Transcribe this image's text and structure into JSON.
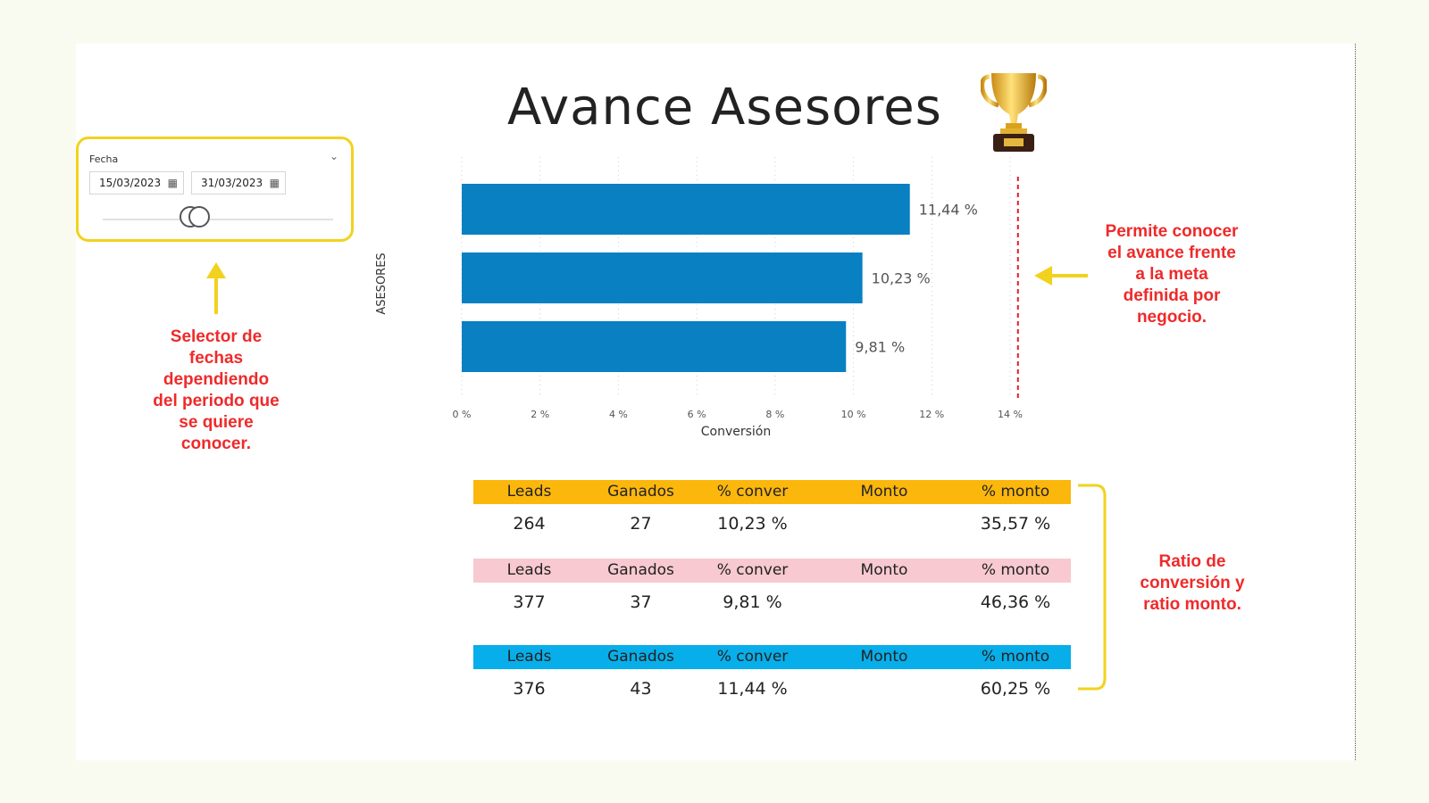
{
  "title": "Avance Asesores",
  "colors": {
    "bar": "#0880c1",
    "goal_line": "#e11d2a",
    "annotation": "#ef2a2a",
    "highlight": "#f2d21e",
    "table_yellow": "#fcb70d",
    "table_pink": "#f8c9d0",
    "table_blue": "#08aeea"
  },
  "slicer": {
    "label": "Fecha",
    "start_date": "15/03/2023",
    "end_date": "31/03/2023",
    "calendar_icon": "calendar-icon",
    "chevron_icon": "chevron-down-icon",
    "range_start": 0.38,
    "range_end": 0.42
  },
  "annotations": {
    "selector": [
      "Selector de",
      "fechas",
      "dependiendo",
      "del periodo que",
      "se quiere",
      "conocer."
    ],
    "goal": [
      "Permite conocer",
      "el avance frente",
      "a la meta",
      "definida por",
      "negocio."
    ],
    "ratio": [
      "Ratio de",
      "conversión y",
      "ratio monto."
    ]
  },
  "chart_data": {
    "type": "bar",
    "orientation": "horizontal",
    "xlabel": "Conversión",
    "ylabel": "ASESORES",
    "xlim": [
      0,
      14
    ],
    "xticks": [
      0,
      2,
      4,
      6,
      8,
      10,
      12,
      14
    ],
    "xtick_labels": [
      "0 %",
      "2 %",
      "4 %",
      "6 %",
      "8 %",
      "10 %",
      "12 %",
      "14 %"
    ],
    "values": [
      11.44,
      10.23,
      9.81
    ],
    "data_labels": [
      "11,44 %",
      "10,23 %",
      "9,81 %"
    ],
    "goal": 14.2,
    "grid": "vertical dotted"
  },
  "tables": [
    {
      "color": "#fcb70d",
      "headers": [
        "Leads",
        "Ganados",
        "% conver",
        "Monto",
        "% monto"
      ],
      "values": [
        "264",
        "27",
        "10,23 %",
        "",
        "35,57 %"
      ]
    },
    {
      "color": "#f8c9d0",
      "headers": [
        "Leads",
        "Ganados",
        "% conver",
        "Monto",
        "% monto"
      ],
      "values": [
        "377",
        "37",
        "9,81 %",
        "",
        "46,36 %"
      ]
    },
    {
      "color": "#08aeea",
      "headers": [
        "Leads",
        "Ganados",
        "% conver",
        "Monto",
        "% monto"
      ],
      "values": [
        "376",
        "43",
        "11,44 %",
        "",
        "60,25 %"
      ]
    }
  ]
}
